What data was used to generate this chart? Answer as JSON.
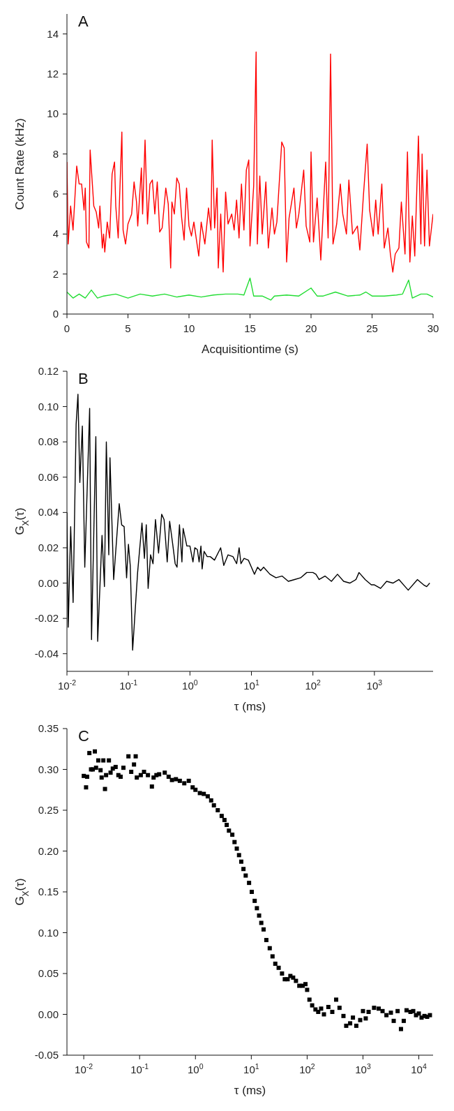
{
  "chart_data": [
    {
      "type": "line",
      "title": "A",
      "xlabel": "Acquisitiontime (s)",
      "ylabel": "Count Rate (kHz)",
      "xlim": [
        0,
        30
      ],
      "ylim": [
        0,
        15
      ],
      "xticks": [
        0,
        5,
        10,
        15,
        20,
        25,
        30
      ],
      "yticks": [
        0,
        2,
        4,
        6,
        8,
        10,
        12,
        14
      ],
      "marker": "none",
      "series": [
        {
          "color": "#ff0000",
          "x": [
            0,
            0.1,
            0.3,
            0.5,
            0.8,
            1.0,
            1.2,
            1.4,
            1.5,
            1.6,
            1.8,
            1.9,
            2.2,
            2.4,
            2.6,
            2.7,
            2.9,
            3.0,
            3.1,
            3.3,
            3.5,
            3.7,
            3.9,
            4.0,
            4.2,
            4.5,
            4.6,
            4.8,
            5.0,
            5.3,
            5.5,
            5.7,
            5.8,
            6.1,
            6.2,
            6.4,
            6.6,
            6.8,
            7.0,
            7.2,
            7.4,
            7.6,
            7.8,
            8.1,
            8.3,
            8.5,
            8.6,
            8.8,
            9.0,
            9.2,
            9.4,
            9.6,
            9.8,
            10.0,
            10.2,
            10.4,
            10.8,
            11.0,
            11.3,
            11.6,
            11.8,
            11.9,
            12.1,
            12.3,
            12.4,
            12.6,
            12.8,
            13.0,
            13.2,
            13.5,
            13.7,
            13.9,
            14.1,
            14.3,
            14.5,
            14.7,
            14.9,
            15.0,
            15.3,
            15.5,
            15.6,
            15.8,
            16.0,
            16.3,
            16.5,
            16.8,
            17.0,
            17.2,
            17.6,
            17.8,
            18.0,
            18.2,
            18.6,
            18.8,
            19.0,
            19.4,
            19.6,
            19.9,
            20.0,
            20.2,
            20.5,
            20.8,
            21.2,
            21.4,
            21.6,
            21.8,
            22.1,
            22.4,
            22.6,
            22.9,
            23.1,
            23.4,
            23.8,
            24.0,
            24.3,
            24.6,
            24.8,
            25.1,
            25.3,
            25.5,
            25.8,
            26.0,
            26.3,
            26.5,
            26.7,
            26.9,
            27.2,
            27.4,
            27.7,
            27.9,
            28.1,
            28.3,
            28.5,
            28.8,
            29.0,
            29.1,
            29.3,
            29.5,
            29.7,
            30.0
          ],
          "values": [
            7.6,
            3.5,
            5.4,
            4.2,
            7.4,
            6.5,
            6.5,
            5.2,
            6.3,
            3.6,
            3.3,
            8.2,
            5.4,
            5.1,
            4.3,
            5.4,
            3.3,
            4.0,
            3.1,
            4.6,
            3.8,
            7.0,
            7.6,
            5.4,
            3.8,
            9.1,
            4.2,
            3.5,
            4.5,
            5.0,
            6.6,
            5.6,
            4.4,
            7.3,
            5.0,
            8.7,
            4.5,
            6.5,
            6.7,
            5.0,
            6.6,
            4.1,
            4.3,
            6.3,
            5.5,
            2.3,
            5.6,
            5.0,
            6.8,
            6.5,
            4.8,
            3.7,
            6.3,
            4.4,
            3.9,
            4.6,
            2.9,
            4.6,
            3.5,
            5.3,
            4.2,
            8.7,
            4.3,
            6.3,
            2.3,
            5.0,
            2.1,
            6.1,
            4.5,
            5.0,
            4.2,
            5.7,
            3.8,
            6.5,
            4.2,
            7.2,
            7.7,
            3.4,
            6.4,
            13.1,
            3.5,
            6.9,
            4.0,
            6.6,
            3.3,
            5.3,
            4.0,
            4.6,
            8.6,
            8.3,
            2.6,
            4.8,
            6.3,
            4.3,
            5.0,
            7.2,
            4.4,
            3.6,
            8.1,
            3.6,
            5.8,
            2.7,
            7.6,
            3.8,
            13.0,
            3.5,
            4.5,
            6.5,
            5.0,
            4.0,
            6.7,
            4.0,
            4.4,
            3.2,
            6.0,
            8.5,
            5.2,
            3.9,
            5.7,
            4.0,
            6.5,
            3.3,
            4.3,
            3.0,
            2.1,
            3.0,
            3.3,
            5.6,
            3.0,
            8.1,
            2.6,
            4.9,
            2.9,
            8.9,
            3.5,
            8.0,
            3.4,
            7.2,
            3.4,
            5.0
          ]
        },
        {
          "color": "#22dd33",
          "x": [
            0,
            0.5,
            1,
            1.5,
            2,
            2.5,
            3,
            4,
            5,
            6,
            7,
            8,
            9,
            10,
            11,
            12,
            13,
            14,
            14.5,
            15,
            15.3,
            16,
            16.7,
            17,
            18,
            19,
            20,
            20.5,
            21,
            22,
            23,
            24,
            24.5,
            25,
            26,
            27,
            27.5,
            28,
            28.3,
            29,
            29.5,
            30
          ],
          "values": [
            1.1,
            0.8,
            1.0,
            0.8,
            1.2,
            0.8,
            0.9,
            1.0,
            0.8,
            1.0,
            0.9,
            1.0,
            0.85,
            0.95,
            0.85,
            0.95,
            1.0,
            1.0,
            0.95,
            1.8,
            0.9,
            0.9,
            0.7,
            0.9,
            0.95,
            0.9,
            1.3,
            0.9,
            0.9,
            1.1,
            0.9,
            0.95,
            1.1,
            0.9,
            0.9,
            0.95,
            1.0,
            1.7,
            0.8,
            1.0,
            1.0,
            0.85
          ]
        }
      ]
    },
    {
      "type": "line",
      "title": "B",
      "xlabel": "τ (ms)",
      "ylabel": "G$_{X}$(τ)",
      "log": "x",
      "marker": "none",
      "xlim": [
        0.01,
        9000
      ],
      "ylim": [
        -0.05,
        0.12
      ],
      "xticks": [
        {
          "value": 0.01,
          "label": "10$^{-2}$"
        },
        {
          "value": 0.1,
          "label": "10$^{-1}$"
        },
        {
          "value": 1,
          "label": "10$^{0}$"
        },
        {
          "value": 10,
          "label": "10$^{1}$"
        },
        {
          "value": 100,
          "label": "10$^{2}$"
        },
        {
          "value": 1000,
          "label": "10$^{3}$"
        }
      ],
      "yticks": [
        {
          "value": -0.04,
          "label": "-0.04"
        },
        {
          "value": -0.02,
          "label": "-0.02"
        },
        {
          "value": 0,
          "label": "0.00"
        },
        {
          "value": 0.02,
          "label": "0.02"
        },
        {
          "value": 0.04,
          "label": "0.04"
        },
        {
          "value": 0.06,
          "label": "0.06"
        },
        {
          "value": 0.08,
          "label": "0.08"
        },
        {
          "value": 0.1,
          "label": "0.10"
        },
        {
          "value": 0.12,
          "label": "0.12"
        }
      ],
      "x": [
        0.01,
        0.0105,
        0.0115,
        0.0126,
        0.0141,
        0.0151,
        0.0162,
        0.0178,
        0.0195,
        0.0234,
        0.0251,
        0.0295,
        0.0316,
        0.0372,
        0.0407,
        0.0437,
        0.0479,
        0.0501,
        0.0575,
        0.0708,
        0.0776,
        0.0851,
        0.0933,
        0.1,
        0.107,
        0.117,
        0.141,
        0.166,
        0.182,
        0.195,
        0.209,
        0.229,
        0.251,
        0.275,
        0.309,
        0.347,
        0.38,
        0.427,
        0.468,
        0.525,
        0.575,
        0.617,
        0.676,
        0.741,
        0.776,
        0.891,
        1,
        1.12,
        1.2,
        1.32,
        1.41,
        1.51,
        1.58,
        1.7,
        1.91,
        2.14,
        2.51,
        3.16,
        3.55,
        4.17,
        5.01,
        5.75,
        6.31,
        6.76,
        7.59,
        8.91,
        10,
        11.2,
        12.6,
        14.1,
        15.8,
        20,
        25.1,
        31.6,
        39.8,
        50.1,
        63.1,
        79.4,
        100,
        112,
        126,
        158,
        200,
        251,
        316,
        398,
        501,
        562,
        708,
        891,
        1000,
        1260,
        1580,
        2000,
        2510,
        3160,
        3550,
        5010,
        6310,
        7080,
        7940
      ],
      "series": [
        {
          "color": "#000000",
          "values": [
            0.04,
            -0.025,
            0.032,
            -0.011,
            0.09,
            0.107,
            0.057,
            0.089,
            0.009,
            0.099,
            -0.032,
            0.083,
            -0.033,
            0.027,
            -0.002,
            0.08,
            0.016,
            0.071,
            0.002,
            0.045,
            0.033,
            0.032,
            0.003,
            0.022,
            0.01,
            -0.038,
            0.006,
            0.034,
            0.014,
            0.033,
            -0.003,
            0.016,
            0.011,
            0.036,
            0.017,
            0.039,
            0.036,
            0.012,
            0.035,
            0.022,
            0.011,
            0.009,
            0.033,
            0.012,
            0.031,
            0.021,
            0.021,
            0.012,
            0.02,
            0.019,
            0.012,
            0.021,
            0.008,
            0.018,
            0.015,
            0.015,
            0.013,
            0.02,
            0.01,
            0.016,
            0.015,
            0.011,
            0.02,
            0.011,
            0.014,
            0.013,
            0.009,
            0.005,
            0.009,
            0.007,
            0.009,
            0.005,
            0.003,
            0.004,
            0.001,
            0.002,
            0.003,
            0.006,
            0.006,
            0.005,
            0.002,
            0.004,
            0.001,
            0.005,
            0.001,
            0,
            0.002,
            0.006,
            0.002,
            -0.001,
            -0.001,
            -0.003,
            0.001,
            0,
            0.002,
            -0.002,
            -0.004,
            0.002,
            -0.001,
            -0.002,
            0
          ]
        }
      ]
    },
    {
      "type": "scatter",
      "title": "C",
      "xlabel": "τ (ms)",
      "ylabel": "G$_{X}$(τ)",
      "log": "x",
      "marker": "square",
      "xlim": [
        0.005,
        18000
      ],
      "ylim": [
        -0.05,
        0.35
      ],
      "xticks": [
        {
          "value": 0.01,
          "label": "10$^{-2}$"
        },
        {
          "value": 0.1,
          "label": "10$^{-1}$"
        },
        {
          "value": 1,
          "label": "10$^{0}$"
        },
        {
          "value": 10,
          "label": "10$^{1}$"
        },
        {
          "value": 100,
          "label": "10$^{2}$"
        },
        {
          "value": 1000,
          "label": "10$^{3}$"
        },
        {
          "value": 10000,
          "label": "10$^{4}$"
        }
      ],
      "yticks": [
        {
          "value": -0.05,
          "label": "-0.05"
        },
        {
          "value": 0,
          "label": "0.00"
        },
        {
          "value": 0.05,
          "label": "0.05"
        },
        {
          "value": 0.1,
          "label": "0.10"
        },
        {
          "value": 0.15,
          "label": "0.15"
        },
        {
          "value": 0.2,
          "label": "0.20"
        },
        {
          "value": 0.25,
          "label": "0.25"
        },
        {
          "value": 0.3,
          "label": "0.30"
        },
        {
          "value": 0.35,
          "label": "0.35"
        }
      ],
      "x": [
        0.01,
        0.011,
        0.0115,
        0.0126,
        0.0135,
        0.0145,
        0.0158,
        0.0166,
        0.0182,
        0.02,
        0.0209,
        0.0224,
        0.024,
        0.0251,
        0.0282,
        0.0302,
        0.0331,
        0.0372,
        0.0417,
        0.0457,
        0.0513,
        0.0631,
        0.0708,
        0.0794,
        0.0851,
        0.0891,
        0.105,
        0.12,
        0.141,
        0.166,
        0.178,
        0.2,
        0.224,
        0.282,
        0.331,
        0.38,
        0.447,
        0.525,
        0.631,
        0.759,
        0.891,
        1,
        1.2,
        1.41,
        1.66,
        1.91,
        2.14,
        2.51,
        2.95,
        3.31,
        3.63,
        3.98,
        4.57,
        5.01,
        5.5,
        6.03,
        6.61,
        7.24,
        7.94,
        9.12,
        10.2,
        11.5,
        12.6,
        13.8,
        15.1,
        16.6,
        18.6,
        21.4,
        24,
        26.9,
        30.9,
        35.5,
        39.8,
        44.7,
        50.1,
        56.2,
        63.1,
        72.4,
        83.2,
        93.3,
        100,
        110,
        123,
        141,
        158,
        178,
        200,
        240,
        282,
        331,
        380,
        447,
        501,
        589,
        661,
        759,
        891,
        1000,
        1120,
        1260,
        1580,
        1910,
        2240,
        2630,
        3160,
        3550,
        4170,
        4790,
        5370,
        6030,
        7080,
        7940,
        8910,
        10000,
        11200,
        12600,
        14100,
        15800
      ],
      "series": [
        {
          "color": "#000000",
          "values": [
            0.292,
            0.278,
            0.291,
            0.32,
            0.3,
            0.3,
            0.322,
            0.302,
            0.311,
            0.299,
            0.29,
            0.311,
            0.276,
            0.293,
            0.311,
            0.296,
            0.301,
            0.303,
            0.293,
            0.291,
            0.302,
            0.316,
            0.297,
            0.306,
            0.316,
            0.29,
            0.293,
            0.297,
            0.293,
            0.279,
            0.29,
            0.293,
            0.294,
            0.296,
            0.291,
            0.287,
            0.288,
            0.286,
            0.283,
            0.286,
            0.278,
            0.275,
            0.271,
            0.27,
            0.267,
            0.262,
            0.256,
            0.25,
            0.243,
            0.238,
            0.232,
            0.225,
            0.22,
            0.211,
            0.203,
            0.195,
            0.187,
            0.178,
            0.17,
            0.161,
            0.15,
            0.139,
            0.13,
            0.121,
            0.112,
            0.104,
            0.091,
            0.081,
            0.071,
            0.062,
            0.057,
            0.05,
            0.043,
            0.043,
            0.047,
            0.045,
            0.041,
            0.035,
            0.035,
            0.037,
            0.03,
            0.018,
            0.011,
            0.006,
            0.003,
            0.007,
            0,
            0.009,
            0.003,
            0.018,
            0.008,
            -0.002,
            -0.014,
            -0.011,
            -0.004,
            -0.014,
            -0.007,
            0.004,
            -0.005,
            0.003,
            0.008,
            0.007,
            0.004,
            -0.001,
            0.002,
            -0.008,
            0.004,
            -0.018,
            -0.008,
            0.005,
            0.003,
            0.004,
            -0.001,
            0.001,
            -0.004,
            -0.002,
            -0.003,
            -0.001
          ]
        }
      ]
    }
  ]
}
